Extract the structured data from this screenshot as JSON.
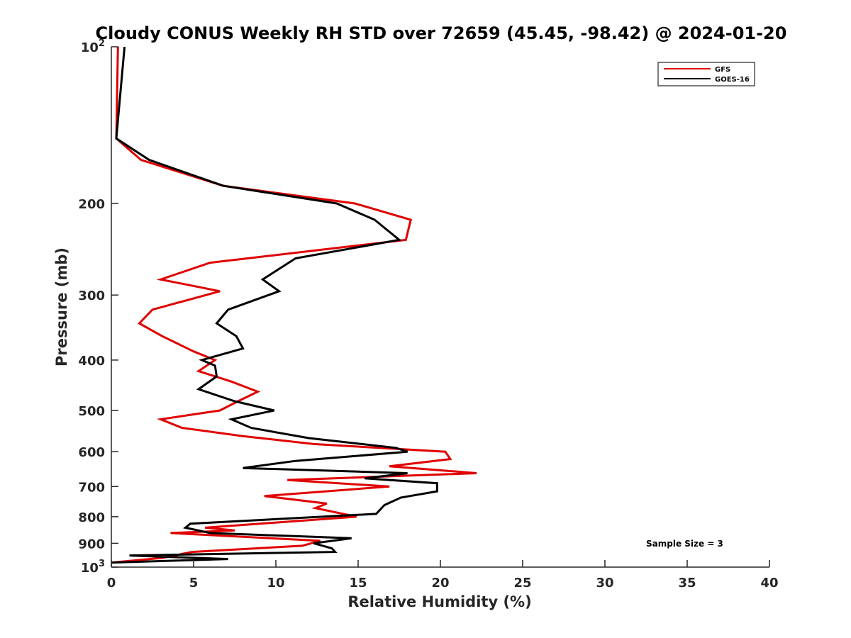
{
  "chart_data": {
    "type": "line",
    "title": "Cloudy CONUS Weekly RH STD over 72659 (45.45, -98.42) @ 2024-01-20",
    "xlabel": "Relative Humidity (%)",
    "ylabel": "Pressure (mb)",
    "xlim": [
      0,
      40
    ],
    "ylim": [
      1000,
      100
    ],
    "yscale": "log",
    "y_reversed": true,
    "x_ticks": [
      0,
      5,
      10,
      15,
      20,
      25,
      30,
      35,
      40
    ],
    "y_ticks": [
      {
        "value": 100,
        "base": "10",
        "exp": "2"
      },
      {
        "value": 200,
        "label": "200"
      },
      {
        "value": 300,
        "label": "300"
      },
      {
        "value": 400,
        "label": "400"
      },
      {
        "value": 500,
        "label": "500"
      },
      {
        "value": 600,
        "label": "600"
      },
      {
        "value": 700,
        "label": "700"
      },
      {
        "value": 800,
        "label": "800"
      },
      {
        "value": 900,
        "label": "900"
      },
      {
        "value": 1000,
        "base": "10",
        "exp": "3"
      }
    ],
    "grid": false,
    "legend_position": "top-right",
    "annotation": "Sample Size = 3",
    "series": [
      {
        "name": "GFS",
        "color": "#e00000",
        "points": [
          [
            0.4,
            100
          ],
          [
            0.3,
            150
          ],
          [
            1.8,
            165
          ],
          [
            6.8,
            185
          ],
          [
            14.8,
            200
          ],
          [
            18.2,
            215
          ],
          [
            17.9,
            235
          ],
          [
            6.0,
            260
          ],
          [
            3.0,
            280
          ],
          [
            6.6,
            295
          ],
          [
            2.5,
            320
          ],
          [
            1.7,
            340
          ],
          [
            3.1,
            360
          ],
          [
            5.0,
            385
          ],
          [
            6.3,
            400
          ],
          [
            5.3,
            420
          ],
          [
            7.3,
            440
          ],
          [
            8.9,
            460
          ],
          [
            7.7,
            480
          ],
          [
            6.6,
            500
          ],
          [
            3.0,
            520
          ],
          [
            4.3,
            540
          ],
          [
            8.0,
            560
          ],
          [
            12.3,
            580
          ],
          [
            20.3,
            600
          ],
          [
            20.6,
            620
          ],
          [
            16.9,
            640
          ],
          [
            22.2,
            660
          ],
          [
            10.7,
            680
          ],
          [
            16.9,
            700
          ],
          [
            9.3,
            730
          ],
          [
            13.1,
            755
          ],
          [
            12.4,
            770
          ],
          [
            14.9,
            800
          ],
          [
            5.7,
            840
          ],
          [
            7.5,
            850
          ],
          [
            3.6,
            860
          ],
          [
            12.7,
            890
          ],
          [
            11.6,
            910
          ],
          [
            4.9,
            935
          ],
          [
            3.1,
            960
          ],
          [
            0,
            980
          ]
        ]
      },
      {
        "name": "GOES-16",
        "color": "#000000",
        "points": [
          [
            0.8,
            100
          ],
          [
            0.3,
            150
          ],
          [
            2.3,
            165
          ],
          [
            6.8,
            185
          ],
          [
            13.7,
            200
          ],
          [
            16.0,
            215
          ],
          [
            17.5,
            235
          ],
          [
            11.2,
            255
          ],
          [
            9.2,
            280
          ],
          [
            10.2,
            295
          ],
          [
            7.1,
            320
          ],
          [
            6.4,
            340
          ],
          [
            7.6,
            360
          ],
          [
            8.0,
            380
          ],
          [
            5.5,
            400
          ],
          [
            6.3,
            410
          ],
          [
            6.4,
            430
          ],
          [
            5.3,
            455
          ],
          [
            7.5,
            480
          ],
          [
            9.9,
            500
          ],
          [
            7.3,
            520
          ],
          [
            8.5,
            540
          ],
          [
            12.0,
            565
          ],
          [
            17.3,
            590
          ],
          [
            18.0,
            600
          ],
          [
            11.2,
            625
          ],
          [
            8.0,
            645
          ],
          [
            18.0,
            660
          ],
          [
            15.4,
            675
          ],
          [
            19.8,
            690
          ],
          [
            19.8,
            715
          ],
          [
            17.6,
            735
          ],
          [
            16.6,
            760
          ],
          [
            16.1,
            790
          ],
          [
            4.8,
            825
          ],
          [
            4.5,
            840
          ],
          [
            6.0,
            860
          ],
          [
            14.6,
            880
          ],
          [
            12.3,
            900
          ],
          [
            13.4,
            920
          ],
          [
            13.6,
            935
          ],
          [
            1.1,
            950
          ],
          [
            7.1,
            965
          ],
          [
            0,
            980
          ]
        ]
      }
    ]
  }
}
